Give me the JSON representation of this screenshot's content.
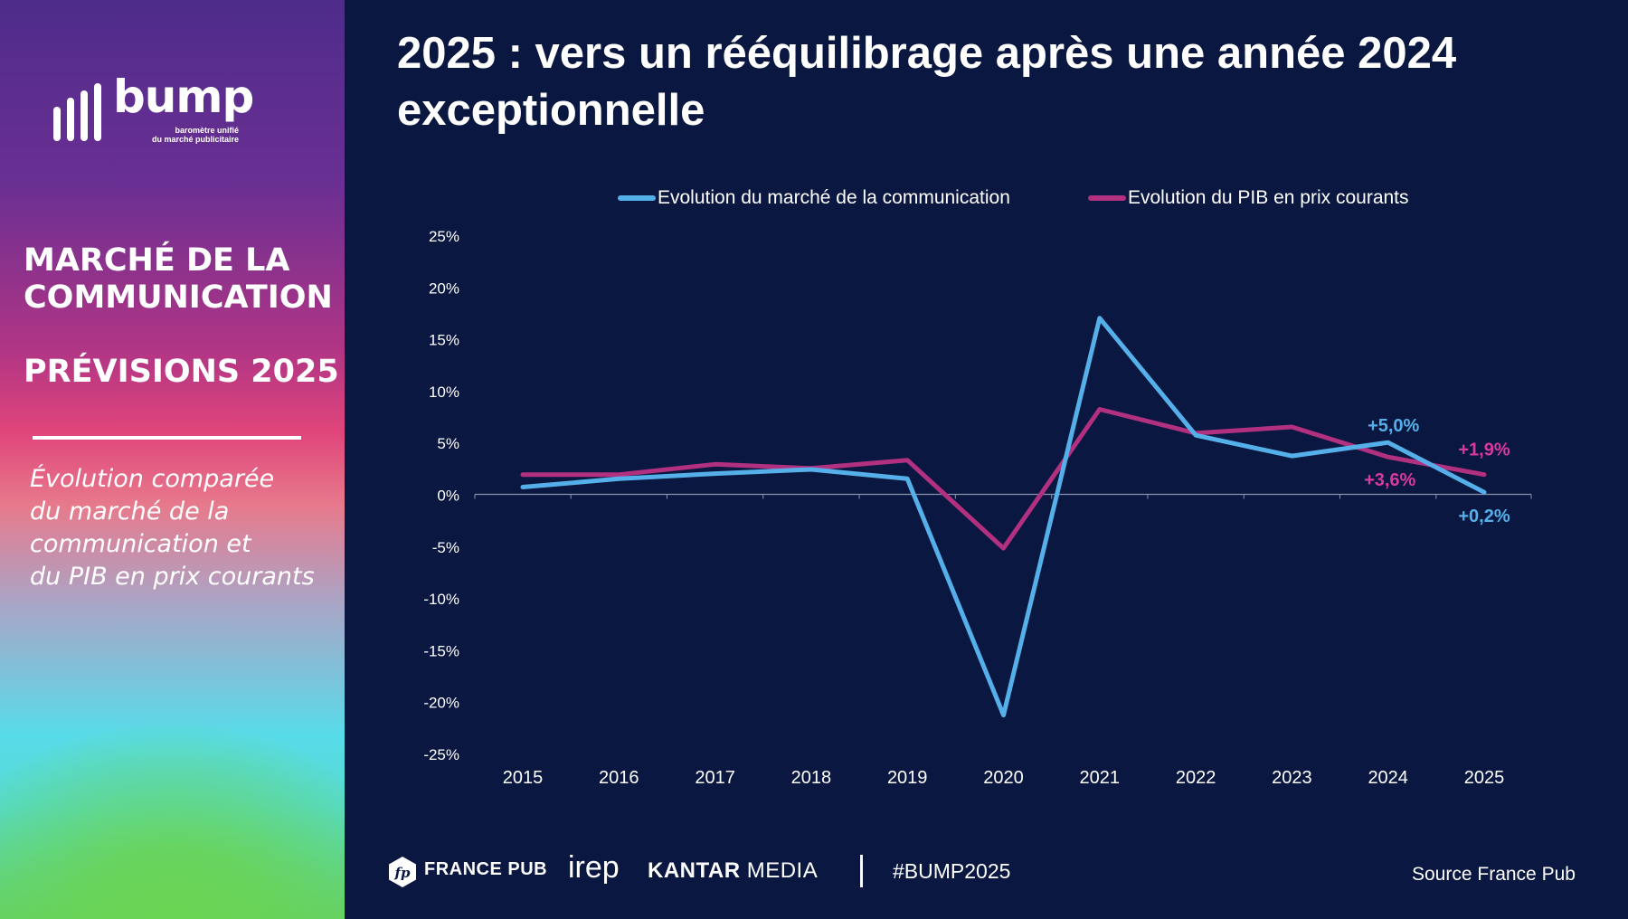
{
  "sidebar": {
    "logo_word": "bump",
    "logo_sub_line1": "baromètre unifié",
    "logo_sub_line2": "du marché publicitaire",
    "heading_line1": "MARCHÉ DE LA",
    "heading_line2": "COMMUNICATION",
    "subheading": "PRÉVISIONS 2025",
    "description_line1": "Évolution comparée",
    "description_line2": "du marché de la",
    "description_line3": "communication et",
    "description_line4": "du PIB en prix courants"
  },
  "title": {
    "line1": "2025 : vers un rééquilibrage après une année 2024",
    "line2": "exceptionnelle"
  },
  "footer": {
    "brand1": "FRANCE PUB",
    "brand1_badge": "fp",
    "brand2": "irep",
    "brand3_bold": "KANTAR",
    "brand3_light": "MEDIA",
    "hashtag": "#BUMP2025",
    "source": "Source France Pub"
  },
  "colors": {
    "communication": "#55b0ea",
    "pib": "#b1307f",
    "communication_label": "#55b0ea",
    "pib_label": "#d93a9a",
    "background": "#0a1740"
  },
  "chart_data": {
    "type": "line",
    "title": "",
    "xlabel": "",
    "ylabel": "",
    "x": [
      "2015",
      "2016",
      "2017",
      "2018",
      "2019",
      "2020",
      "2021",
      "2022",
      "2023",
      "2024",
      "2025"
    ],
    "ylim": [
      -25,
      25
    ],
    "y_ticks": [
      "25%",
      "20%",
      "15%",
      "10%",
      "5%",
      "0%",
      "-5%",
      "-10%",
      "-15%",
      "-20%",
      "-25%"
    ],
    "grid": false,
    "legend_position": "top",
    "series": [
      {
        "name": "Evolution du marché de la communication",
        "values": [
          0.7,
          1.5,
          2.0,
          2.4,
          1.5,
          -21.3,
          17.0,
          5.7,
          3.7,
          5.0,
          0.2
        ]
      },
      {
        "name": "Evolution du PIB en prix courants",
        "values": [
          1.9,
          1.9,
          2.9,
          2.5,
          3.3,
          -5.2,
          8.2,
          5.9,
          6.5,
          3.6,
          1.9
        ]
      }
    ],
    "annotations": [
      {
        "series": 0,
        "x": "2024",
        "text": "+5,0%"
      },
      {
        "series": 0,
        "x": "2025",
        "text": "+0,2%"
      },
      {
        "series": 1,
        "x": "2024",
        "text": "+3,6%"
      },
      {
        "series": 1,
        "x": "2025",
        "text": "+1,9%"
      }
    ]
  }
}
